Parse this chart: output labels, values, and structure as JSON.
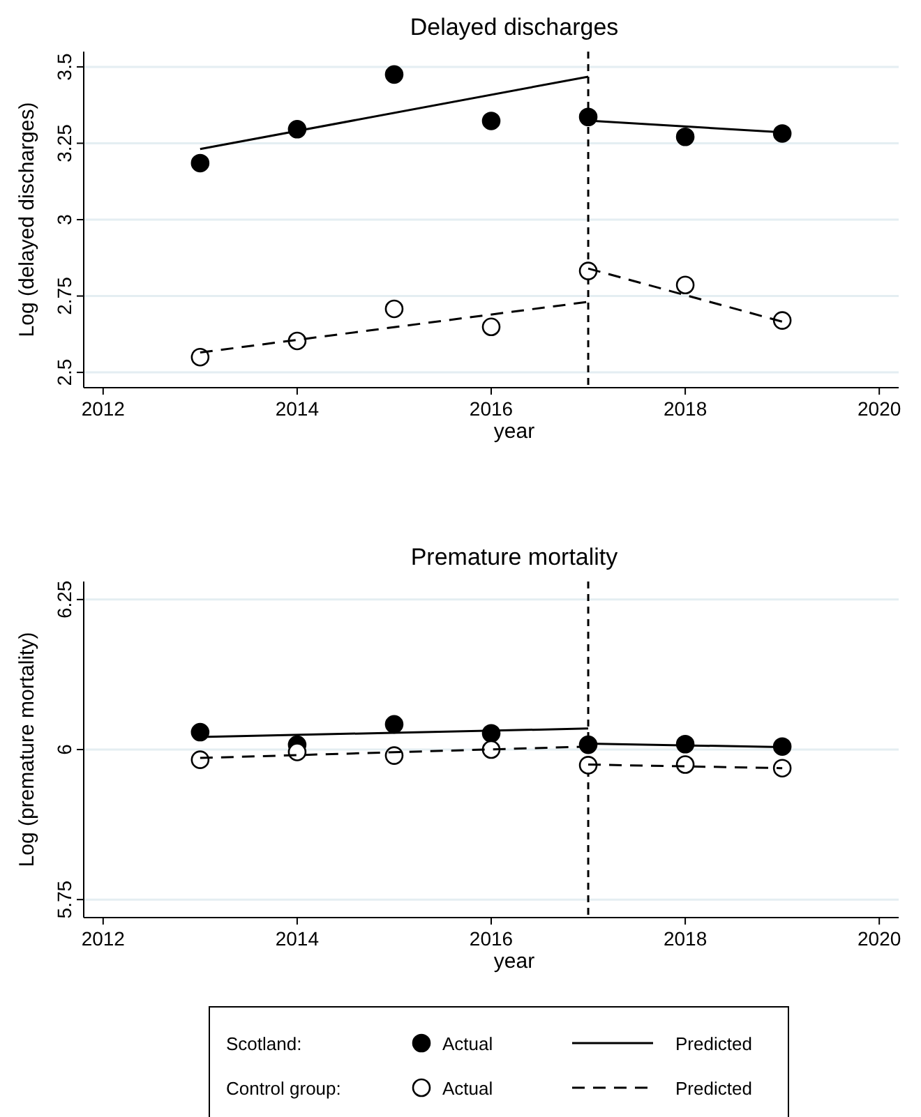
{
  "chart_data": [
    {
      "type": "scatter",
      "title": "Delayed discharges",
      "xlabel": "year",
      "ylabel": "Log (delayed discharges)",
      "xlim": [
        2011.8,
        2020.2
      ],
      "xticks": [
        2012,
        2014,
        2016,
        2018,
        2020
      ],
      "ylim": [
        2.45,
        3.55
      ],
      "yticks": [
        2.5,
        2.75,
        3,
        3.25,
        3.5
      ],
      "grid": "y",
      "ref_lines": [
        {
          "axis": "x",
          "value": 2017,
          "color": "#000000",
          "line_style": "dashed"
        }
      ],
      "series": [
        {
          "color": "#000000",
          "marker": "circle",
          "x": [
            2013,
            2014,
            2015,
            2016,
            2017,
            2018,
            2019
          ],
          "values": [
            3.185,
            3.296,
            3.475,
            3.323,
            3.336,
            3.271,
            3.282
          ]
        },
        {
          "type": "line",
          "color": "#000000",
          "line_style": "solid",
          "x": [
            2013,
            2017
          ],
          "values": [
            3.231,
            3.468
          ]
        },
        {
          "type": "line",
          "color": "#000000",
          "line_style": "solid",
          "x": [
            2017,
            2019
          ],
          "values": [
            3.324,
            3.286
          ]
        },
        {
          "color": "#ffffff",
          "marker": "circle",
          "x": [
            2013,
            2014,
            2015,
            2016,
            2017,
            2018,
            2019
          ],
          "values": [
            2.55,
            2.603,
            2.708,
            2.649,
            2.832,
            2.786,
            2.67
          ]
        },
        {
          "type": "line",
          "color": "#000000",
          "line_style": "dashed",
          "x": [
            2013,
            2017
          ],
          "values": [
            2.565,
            2.731
          ]
        },
        {
          "type": "line",
          "color": "#000000",
          "line_style": "dashed",
          "x": [
            2017,
            2019
          ],
          "values": [
            2.84,
            2.666
          ]
        }
      ]
    },
    {
      "type": "scatter",
      "title": "Premature mortality",
      "xlabel": "year",
      "ylabel": "Log (premature mortality)",
      "xlim": [
        2011.8,
        2020.2
      ],
      "xticks": [
        2012,
        2014,
        2016,
        2018,
        2020
      ],
      "ylim": [
        5.72,
        6.28
      ],
      "yticks": [
        5.75,
        6,
        6.25
      ],
      "grid": "y",
      "legend": "bottom",
      "annotations": [
        "Scotland:",
        "Control group:"
      ],
      "ref_lines": [
        {
          "axis": "x",
          "value": 2017,
          "color": "#000000",
          "line_style": "dashed"
        }
      ],
      "series": [
        {
          "name": "Actual",
          "color": "#000000",
          "marker": "circle",
          "x": [
            2013,
            2014,
            2015,
            2016,
            2017,
            2018,
            2019
          ],
          "values": [
            6.029,
            6.008,
            6.042,
            6.027,
            6.008,
            6.009,
            6.005
          ]
        },
        {
          "type": "line",
          "name": "Predicted",
          "color": "#000000",
          "line_style": "solid",
          "x": [
            2013,
            2017
          ],
          "values": [
            6.021,
            6.035
          ]
        },
        {
          "type": "line",
          "color": "#000000",
          "line_style": "solid",
          "x": [
            2017,
            2019
          ],
          "values": [
            6.01,
            6.004
          ]
        },
        {
          "name": "Actual",
          "color": "#ffffff",
          "marker": "circle",
          "x": [
            2013,
            2014,
            2015,
            2016,
            2017,
            2018,
            2019
          ],
          "values": [
            5.983,
            5.996,
            5.99,
            6.0,
            5.974,
            5.975,
            5.969
          ]
        },
        {
          "type": "line",
          "name": "Predicted",
          "color": "#000000",
          "line_style": "dashed",
          "x": [
            2013,
            2017
          ],
          "values": [
            5.986,
            6.005
          ]
        },
        {
          "type": "line",
          "color": "#000000",
          "line_style": "dashed",
          "x": [
            2017,
            2019
          ],
          "values": [
            5.975,
            5.969
          ]
        }
      ]
    }
  ]
}
